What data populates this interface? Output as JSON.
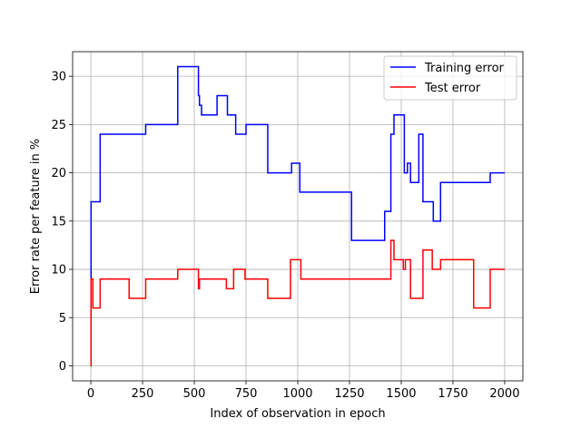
{
  "chart_data": {
    "type": "line",
    "xlabel": "Index of observation in epoch",
    "ylabel": "Error rate per feature in %",
    "xlim": [
      -88,
      2088
    ],
    "ylim": [
      -1.55,
      32.55
    ],
    "xticks": [
      0,
      250,
      500,
      750,
      1000,
      1250,
      1500,
      1750,
      2000
    ],
    "yticks": [
      0,
      5,
      10,
      15,
      20,
      25,
      30
    ],
    "grid": true,
    "legend_position": "top-right",
    "step": "post",
    "series": [
      {
        "name": "Training error",
        "color": "#0000ff",
        "x": [
          0,
          1,
          45,
          265,
          420,
          520,
          525,
          535,
          610,
          660,
          700,
          750,
          855,
          970,
          1010,
          1260,
          1420,
          1450,
          1465,
          1515,
          1530,
          1545,
          1585,
          1605,
          1655,
          1690,
          1930,
          2000
        ],
        "y": [
          0,
          17,
          24,
          25,
          31,
          28,
          27,
          26,
          28,
          26,
          24,
          25,
          20,
          21,
          18,
          13,
          16,
          24,
          26,
          20,
          21,
          19,
          24,
          17,
          15,
          19,
          20,
          20
        ]
      },
      {
        "name": "Test error",
        "color": "#ff0000",
        "x": [
          0,
          1,
          10,
          45,
          185,
          265,
          420,
          520,
          525,
          535,
          655,
          690,
          745,
          855,
          965,
          1015,
          1450,
          1465,
          1510,
          1520,
          1530,
          1545,
          1605,
          1650,
          1690,
          1850,
          1930,
          2000
        ],
        "y": [
          0,
          9,
          6,
          9,
          7,
          9,
          10,
          8,
          9,
          9,
          8,
          10,
          9,
          7,
          11,
          9,
          13,
          11,
          10,
          11,
          11,
          7,
          12,
          10,
          11,
          6,
          10,
          10
        ]
      }
    ]
  }
}
